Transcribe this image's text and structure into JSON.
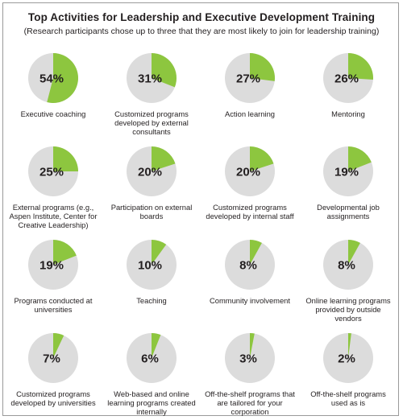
{
  "chart_data": {
    "type": "pie",
    "title": "Top Activities for Leadership and Executive Development Training",
    "subtitle": "(Research participants chose up to three that they are most likely to join for leadership training)",
    "colors": {
      "highlight": "#8dc63f",
      "remainder": "#dcdcdc"
    },
    "items": [
      {
        "label": "Executive coaching",
        "value": 54,
        "display": "54%"
      },
      {
        "label": "Customized programs developed by external consultants",
        "value": 31,
        "display": "31%"
      },
      {
        "label": "Action learning",
        "value": 27,
        "display": "27%"
      },
      {
        "label": "Mentoring",
        "value": 26,
        "display": "26%"
      },
      {
        "label": "External programs (e.g., Aspen Institute, Center for Creative Leadership)",
        "value": 25,
        "display": "25%"
      },
      {
        "label": "Participation on external boards",
        "value": 20,
        "display": "20%"
      },
      {
        "label": "Customized programs developed by internal staff",
        "value": 20,
        "display": "20%"
      },
      {
        "label": "Developmental job assignments",
        "value": 19,
        "display": "19%"
      },
      {
        "label": "Programs conducted at universities",
        "value": 19,
        "display": "19%"
      },
      {
        "label": "Teaching",
        "value": 10,
        "display": "10%"
      },
      {
        "label": "Community involvement",
        "value": 8,
        "display": "8%"
      },
      {
        "label": "Online learning programs provided by outside vendors",
        "value": 8,
        "display": "8%"
      },
      {
        "label": "Customized programs developed by universities",
        "value": 7,
        "display": "7%"
      },
      {
        "label": "Web-based and online learning programs created internally",
        "value": 6,
        "display": "6%"
      },
      {
        "label": "Off-the-shelf programs that are tailored for your corporation",
        "value": 3,
        "display": "3%"
      },
      {
        "label": "Off-the-shelf programs used as is",
        "value": 2,
        "display": "2%"
      }
    ]
  }
}
